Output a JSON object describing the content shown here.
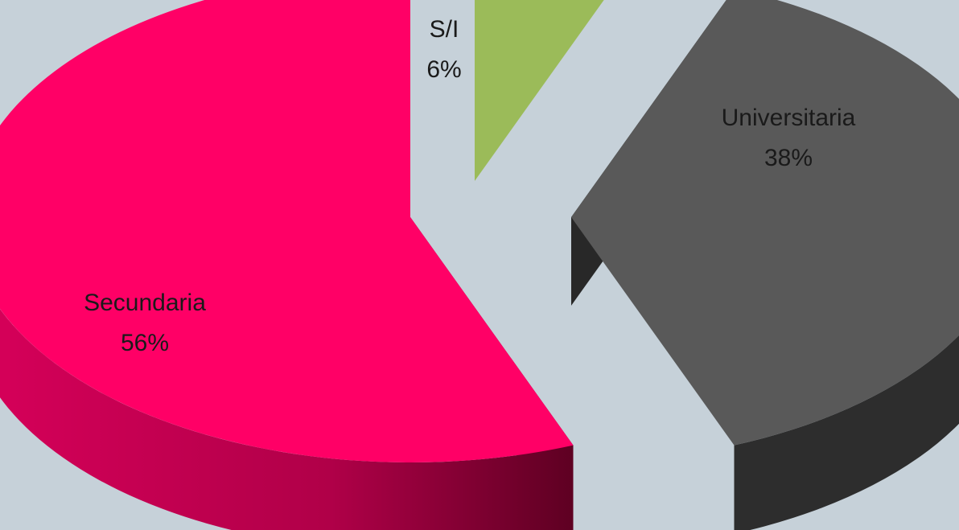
{
  "chart_data": {
    "type": "pie",
    "variant": "3d-exploded",
    "title": "",
    "categories": [
      "S/I",
      "Universitaria",
      "Secundaria"
    ],
    "values": [
      6,
      38,
      56
    ],
    "labels": [
      {
        "name": "S/I",
        "pct": "6%"
      },
      {
        "name": "Universitaria",
        "pct": "38%"
      },
      {
        "name": "Secundaria",
        "pct": "56%"
      }
    ],
    "colors": {
      "S/I": "#9bbb59",
      "Universitaria": "#595959",
      "Secundaria": "#ff0066"
    },
    "legend": "none",
    "background": "#c6d1d9"
  }
}
